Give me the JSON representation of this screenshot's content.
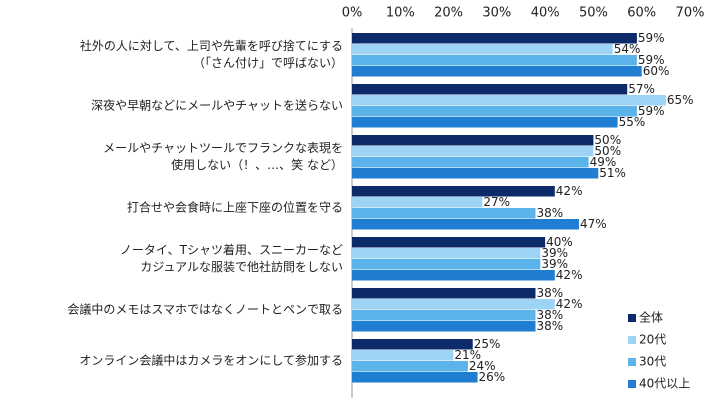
{
  "chart_data": {
    "type": "bar",
    "orientation": "horizontal",
    "categories": [
      [
        "社外の人に対して、上司や先輩を呼び捨てにする",
        "（「さん付け」で呼ばない）"
      ],
      [
        "深夜や早朝などにメールやチャットを送らない"
      ],
      [
        "メールやチャットツールでフランクな表現を",
        "使用しない（！、…、笑 など）"
      ],
      [
        "打合せや会食時に上座下座の位置を守る"
      ],
      [
        "ノータイ、Tシャツ着用、スニーカーなど",
        "カジュアルな服装で他社訪問をしない"
      ],
      [
        "会議中のメモはスマホではなくノートとペンで取る"
      ],
      [
        "オンライン会議中はカメラをオンにして参加する"
      ]
    ],
    "series": [
      {
        "name": "全体",
        "color": "#0d2a6b",
        "values": [
          59,
          57,
          50,
          42,
          40,
          38,
          25
        ],
        "value_labels": [
          "59%",
          "57%",
          "50%",
          "42%",
          "40%",
          "38%",
          "25%"
        ]
      },
      {
        "name": "20代",
        "color": "#9dd3f5",
        "values": [
          54,
          65,
          50,
          27,
          39,
          42,
          21
        ],
        "value_labels": [
          "54%",
          "65%",
          "50%",
          "27%",
          "39%",
          "42%",
          "21%"
        ]
      },
      {
        "name": "30代",
        "color": "#5bb3ea",
        "values": [
          59,
          59,
          49,
          38,
          39,
          38,
          24
        ],
        "value_labels": [
          "59%",
          "59%",
          "49%",
          "38%",
          "39%",
          "38%",
          "24%"
        ]
      },
      {
        "name": "40代以上",
        "color": "#1f7ed1",
        "values": [
          60,
          55,
          51,
          47,
          42,
          38,
          26
        ],
        "value_labels": [
          "60%",
          "55%",
          "51%",
          "47%",
          "42%",
          "38%",
          "26%"
        ]
      }
    ],
    "xlim": [
      0,
      70
    ],
    "xticks": [
      {
        "value": 0,
        "label": "0%"
      },
      {
        "value": 10,
        "label": "10%"
      },
      {
        "value": 20,
        "label": "20%"
      },
      {
        "value": 30,
        "label": "30%"
      },
      {
        "value": 40,
        "label": "40%"
      },
      {
        "value": 50,
        "label": "50%"
      },
      {
        "value": 60,
        "label": "60%"
      },
      {
        "value": 70,
        "label": "70%"
      }
    ],
    "grid": false,
    "legend": "bottom-right"
  }
}
